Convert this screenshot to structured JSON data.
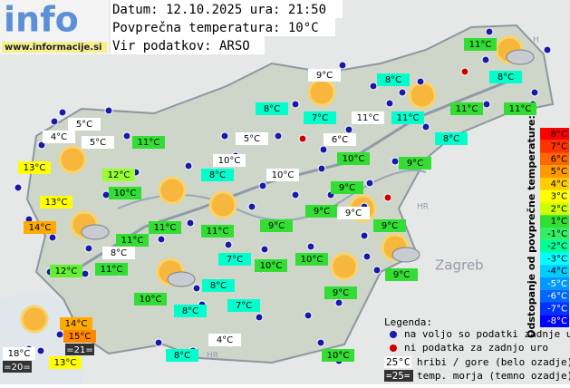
{
  "logo": {
    "word": "info",
    "url": "www.informacije.si"
  },
  "header": {
    "date_line": "Datum: 12.10.2025 ura: 21:50",
    "avg_line": "Povprečna temperatura: 10°C",
    "source_line": "Vir podatkov: ARSO"
  },
  "map_labels": [
    "H",
    "HR",
    "HR",
    "Zagreb"
  ],
  "stations": [
    {
      "label": "11°C",
      "color": "#33dd33"
    },
    {
      "label": "9°C",
      "color": "#ffffff"
    },
    {
      "label": "8°C",
      "color": "#00ffcc"
    },
    {
      "label": "8°C",
      "color": "#00ffcc"
    },
    {
      "label": "8°C",
      "color": "#00ffcc"
    },
    {
      "label": "7°C",
      "color": "#00ffcc"
    },
    {
      "label": "11°C",
      "color": "#ffffff"
    },
    {
      "label": "11°C",
      "color": "#00ffcc"
    },
    {
      "label": "11°C",
      "color": "#33dd33"
    },
    {
      "label": "11°C",
      "color": "#33dd33"
    },
    {
      "label": "5°C",
      "color": "#ffffff"
    },
    {
      "label": "4°C",
      "color": "#ffffff"
    },
    {
      "label": "5°C",
      "color": "#ffffff"
    },
    {
      "label": "11°C",
      "color": "#33dd33"
    },
    {
      "label": "5°C",
      "color": "#ffffff"
    },
    {
      "label": "6°C",
      "color": "#ffffff"
    },
    {
      "label": "8°C",
      "color": "#00ffcc"
    },
    {
      "label": "13°C",
      "color": "#ffff00"
    },
    {
      "label": "10°C",
      "color": "#ffffff"
    },
    {
      "label": "10°C",
      "color": "#33dd33"
    },
    {
      "label": "9°C",
      "color": "#33dd33"
    },
    {
      "label": "12°C",
      "color": "#99ff33"
    },
    {
      "label": "8°C",
      "color": "#00ffcc"
    },
    {
      "label": "10°C",
      "color": "#ffffff"
    },
    {
      "label": "13°C",
      "color": "#ffff00"
    },
    {
      "label": "10°C",
      "color": "#33dd33"
    },
    {
      "label": "9°C",
      "color": "#33dd33"
    },
    {
      "label": "9°C",
      "color": "#33dd33"
    },
    {
      "label": "9°C",
      "color": "#ffffff"
    },
    {
      "label": "14°C",
      "color": "#ffaa00"
    },
    {
      "label": "11°C",
      "color": "#33dd33"
    },
    {
      "label": "11°C",
      "color": "#33dd33"
    },
    {
      "label": "9°C",
      "color": "#33dd33"
    },
    {
      "label": "9°C",
      "color": "#33dd33"
    },
    {
      "label": "11°C",
      "color": "#33dd33"
    },
    {
      "label": "8°C",
      "color": "#ffffff"
    },
    {
      "label": "7°C",
      "color": "#00ffcc"
    },
    {
      "label": "10°C",
      "color": "#33dd33"
    },
    {
      "label": "10°C",
      "color": "#33dd33"
    },
    {
      "label": "12°C",
      "color": "#66ee33"
    },
    {
      "label": "11°C",
      "color": "#33dd33"
    },
    {
      "label": "9°C",
      "color": "#33dd33"
    },
    {
      "label": "8°C",
      "color": "#00ffcc"
    },
    {
      "label": "10°C",
      "color": "#33dd33"
    },
    {
      "label": "9°C",
      "color": "#33dd33"
    },
    {
      "label": "8°C",
      "color": "#00ffcc"
    },
    {
      "label": "7°C",
      "color": "#00ffcc"
    },
    {
      "label": "14°C",
      "color": "#ffaa00"
    },
    {
      "label": "15°C",
      "color": "#ff8800"
    },
    {
      "label": "18°C",
      "color": "#ffffff"
    },
    {
      "label": "13°C",
      "color": "#ffff00"
    },
    {
      "label": "4°C",
      "color": "#ffffff"
    },
    {
      "label": "8°C",
      "color": "#00ffcc"
    },
    {
      "label": "10°C",
      "color": "#33dd33"
    }
  ],
  "sea": [
    "=21=",
    "=20="
  ],
  "scale": {
    "title": "Odstopanje od povprečne temperature:",
    "steps": [
      {
        "label": "8°C",
        "color": "#ff0000"
      },
      {
        "label": "7°C",
        "color": "#ff3300"
      },
      {
        "label": "6°C",
        "color": "#ff6600"
      },
      {
        "label": "5°C",
        "color": "#ff9900"
      },
      {
        "label": "4°C",
        "color": "#ffcc00"
      },
      {
        "label": "3°C",
        "color": "#ffff00"
      },
      {
        "label": "2°C",
        "color": "#ccff00"
      },
      {
        "label": "1°C",
        "color": "#33dd33"
      },
      {
        "label": "-1°C",
        "color": "#33ee66"
      },
      {
        "label": "-2°C",
        "color": "#00ff99"
      },
      {
        "label": "-3°C",
        "color": "#00ffff"
      },
      {
        "label": "-4°C",
        "color": "#00ccff"
      },
      {
        "label": "-5°C",
        "color": "#0099ff"
      },
      {
        "label": "-6°C",
        "color": "#0066ff"
      },
      {
        "label": "-7°C",
        "color": "#0033ff"
      },
      {
        "label": "-8°C",
        "color": "#0000ff"
      }
    ]
  },
  "legend": {
    "title": "Legenda:",
    "available": "na voljo so podatki zadnje ure",
    "missing": "ni podatka za zadnjo uro",
    "hill_sample": "25°C",
    "hill_text": "hribi / gore (belo ozadje)",
    "sea_sample": "=25=",
    "sea_text": "temp. morja (temno ozadje)"
  }
}
